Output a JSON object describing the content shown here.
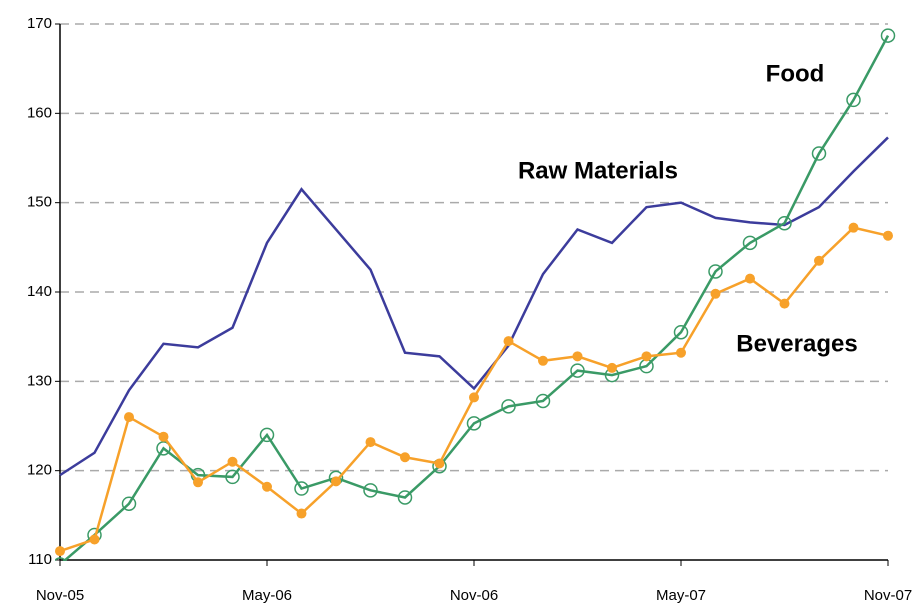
{
  "chart_data": {
    "type": "line",
    "categories": [
      "Nov-05",
      null,
      null,
      null,
      null,
      null,
      "May-06",
      null,
      null,
      null,
      null,
      null,
      "Nov-06",
      null,
      null,
      null,
      null,
      null,
      "May-07",
      null,
      null,
      null,
      null,
      null,
      "Nov-07"
    ],
    "series": [
      {
        "name": "Raw Materials",
        "color": "#3c3c9c",
        "marker": "none",
        "values": [
          119.5,
          122,
          129,
          134.2,
          133.8,
          136,
          145.5,
          151.5,
          147,
          142.5,
          133.2,
          132.8,
          129.2,
          134,
          142,
          147,
          145.5,
          149.5,
          150,
          148.3,
          147.8,
          147.5,
          149.5,
          153.5,
          157.3
        ]
      },
      {
        "name": "Food",
        "color": "#3a9a66",
        "marker": "open",
        "values": [
          109.5,
          112.8,
          116.3,
          122.5,
          119.5,
          119.3,
          124,
          118,
          119.2,
          117.8,
          117,
          120.5,
          125.3,
          127.2,
          127.8,
          131.2,
          130.7,
          131.7,
          135.5,
          142.3,
          145.5,
          147.7,
          155.5,
          161.5,
          168.7
        ]
      },
      {
        "name": "Beverages",
        "color": "#f7a12a",
        "marker": "filled",
        "values": [
          111,
          112.3,
          126,
          123.8,
          118.7,
          121,
          118.2,
          115.2,
          118.8,
          123.2,
          121.5,
          120.8,
          128.2,
          134.5,
          132.3,
          132.8,
          131.5,
          132.8,
          133.2,
          139.8,
          141.5,
          138.7,
          143.5,
          147.2,
          146.3
        ]
      }
    ],
    "ylim": [
      110,
      170
    ],
    "yticks": [
      110,
      120,
      130,
      140,
      150,
      160,
      170
    ],
    "grid": true
  }
}
